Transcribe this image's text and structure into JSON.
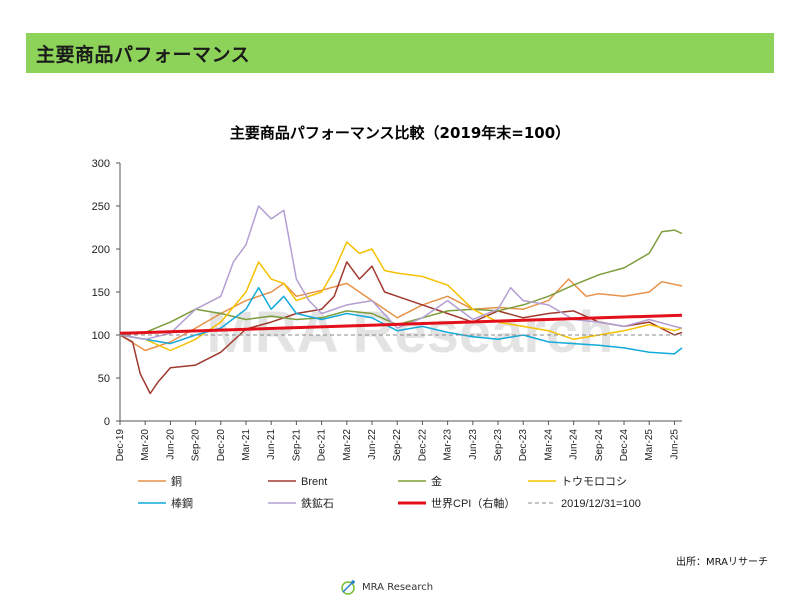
{
  "banner": {
    "title": "主要商品パフォーマンス"
  },
  "chart_data": {
    "type": "line",
    "title": "主要商品パフォーマンス比較（2019年末=100）",
    "ylim": [
      0,
      300
    ],
    "yticks": [
      0,
      50,
      100,
      150,
      200,
      250,
      300
    ],
    "x_tick_labels": [
      "Dec-19",
      "Mar-20",
      "Jun-20",
      "Sep-20",
      "Dec-20",
      "Mar-21",
      "Jun-21",
      "Sep-21",
      "Dec-21",
      "Mar-22",
      "Jun-22",
      "Sep-22",
      "Dec-22",
      "Mar-23",
      "Jun-23",
      "Sep-23",
      "Dec-23",
      "Mar-24",
      "Jun-24",
      "Sep-24",
      "Dec-24",
      "Mar-25",
      "Jun-25"
    ],
    "x_range": [
      0,
      22.3
    ],
    "grid": false,
    "legend_position": "bottom",
    "watermark": "MRA Research",
    "series": [
      {
        "name": "銅",
        "color": "#e8924a",
        "width": 1.5,
        "points": [
          [
            0,
            100
          ],
          [
            1,
            82
          ],
          [
            2,
            92
          ],
          [
            3,
            108
          ],
          [
            4,
            125
          ],
          [
            5,
            140
          ],
          [
            6,
            150
          ],
          [
            6.5,
            160
          ],
          [
            7,
            145
          ],
          [
            8,
            152
          ],
          [
            9,
            160
          ],
          [
            10,
            140
          ],
          [
            11,
            120
          ],
          [
            12,
            135
          ],
          [
            13,
            145
          ],
          [
            14,
            130
          ],
          [
            15,
            132
          ],
          [
            16,
            130
          ],
          [
            17,
            140
          ],
          [
            17.8,
            165
          ],
          [
            18.5,
            145
          ],
          [
            19,
            148
          ],
          [
            20,
            145
          ],
          [
            21,
            150
          ],
          [
            21.5,
            162
          ],
          [
            22.3,
            157
          ]
        ]
      },
      {
        "name": "Brent",
        "color": "#a03a2e",
        "width": 1.5,
        "points": [
          [
            0,
            100
          ],
          [
            0.5,
            92
          ],
          [
            0.8,
            55
          ],
          [
            1.2,
            32
          ],
          [
            1.5,
            45
          ],
          [
            2,
            62
          ],
          [
            3,
            65
          ],
          [
            4,
            80
          ],
          [
            5,
            107
          ],
          [
            6,
            115
          ],
          [
            7,
            125
          ],
          [
            8,
            130
          ],
          [
            8.5,
            145
          ],
          [
            9,
            185
          ],
          [
            9.5,
            165
          ],
          [
            10,
            180
          ],
          [
            10.5,
            150
          ],
          [
            11,
            145
          ],
          [
            12,
            135
          ],
          [
            13,
            125
          ],
          [
            14,
            115
          ],
          [
            15,
            128
          ],
          [
            16,
            120
          ],
          [
            17,
            125
          ],
          [
            18,
            128
          ],
          [
            19,
            115
          ],
          [
            20,
            110
          ],
          [
            21,
            115
          ],
          [
            22,
            100
          ],
          [
            22.3,
            103
          ]
        ]
      },
      {
        "name": "金",
        "color": "#7d9d3c",
        "width": 1.5,
        "points": [
          [
            0,
            100
          ],
          [
            1,
            103
          ],
          [
            2,
            115
          ],
          [
            3,
            130
          ],
          [
            4,
            125
          ],
          [
            5,
            118
          ],
          [
            6,
            122
          ],
          [
            7,
            118
          ],
          [
            8,
            120
          ],
          [
            9,
            128
          ],
          [
            10,
            125
          ],
          [
            11,
            112
          ],
          [
            12,
            120
          ],
          [
            13,
            128
          ],
          [
            14,
            130
          ],
          [
            15,
            128
          ],
          [
            16,
            135
          ],
          [
            17,
            145
          ],
          [
            18,
            158
          ],
          [
            19,
            170
          ],
          [
            20,
            178
          ],
          [
            21,
            195
          ],
          [
            21.5,
            220
          ],
          [
            22,
            222
          ],
          [
            22.3,
            218
          ]
        ]
      },
      {
        "name": "トウモロコシ",
        "color": "#f5c100",
        "width": 1.5,
        "points": [
          [
            0,
            100
          ],
          [
            1,
            95
          ],
          [
            2,
            82
          ],
          [
            3,
            95
          ],
          [
            4,
            115
          ],
          [
            5,
            150
          ],
          [
            5.5,
            185
          ],
          [
            6,
            165
          ],
          [
            6.5,
            160
          ],
          [
            7,
            140
          ],
          [
            8,
            150
          ],
          [
            8.5,
            175
          ],
          [
            9,
            208
          ],
          [
            9.5,
            195
          ],
          [
            10,
            200
          ],
          [
            10.5,
            175
          ],
          [
            11,
            172
          ],
          [
            12,
            168
          ],
          [
            13,
            158
          ],
          [
            14,
            130
          ],
          [
            15,
            115
          ],
          [
            16,
            110
          ],
          [
            17,
            105
          ],
          [
            18,
            95
          ],
          [
            19,
            100
          ],
          [
            20,
            105
          ],
          [
            21,
            112
          ],
          [
            22,
            105
          ],
          [
            22.3,
            108
          ]
        ]
      },
      {
        "name": "棒鋼",
        "color": "#13aadc",
        "width": 1.5,
        "points": [
          [
            0,
            100
          ],
          [
            1,
            95
          ],
          [
            2,
            90
          ],
          [
            3,
            100
          ],
          [
            4,
            108
          ],
          [
            5,
            130
          ],
          [
            5.5,
            155
          ],
          [
            6,
            130
          ],
          [
            6.5,
            145
          ],
          [
            7,
            125
          ],
          [
            8,
            118
          ],
          [
            9,
            125
          ],
          [
            10,
            120
          ],
          [
            11,
            105
          ],
          [
            12,
            110
          ],
          [
            13,
            103
          ],
          [
            14,
            98
          ],
          [
            15,
            95
          ],
          [
            16,
            100
          ],
          [
            17,
            92
          ],
          [
            18,
            90
          ],
          [
            19,
            88
          ],
          [
            20,
            85
          ],
          [
            21,
            80
          ],
          [
            22,
            78
          ],
          [
            22.3,
            85
          ]
        ]
      },
      {
        "name": "鉄鉱石",
        "color": "#b39fd2",
        "width": 1.5,
        "points": [
          [
            0,
            100
          ],
          [
            1,
            95
          ],
          [
            2,
            102
          ],
          [
            3,
            130
          ],
          [
            4,
            145
          ],
          [
            4.5,
            185
          ],
          [
            5,
            205
          ],
          [
            5.5,
            250
          ],
          [
            6,
            235
          ],
          [
            6.5,
            245
          ],
          [
            7,
            165
          ],
          [
            7.5,
            140
          ],
          [
            8,
            125
          ],
          [
            9,
            135
          ],
          [
            10,
            140
          ],
          [
            11,
            108
          ],
          [
            12,
            120
          ],
          [
            13,
            140
          ],
          [
            14,
            118
          ],
          [
            15,
            130
          ],
          [
            15.5,
            155
          ],
          [
            16,
            140
          ],
          [
            17,
            135
          ],
          [
            18,
            118
          ],
          [
            19,
            115
          ],
          [
            20,
            110
          ],
          [
            21,
            118
          ],
          [
            22,
            110
          ],
          [
            22.3,
            108
          ]
        ]
      },
      {
        "name": "世界CPI（右軸）",
        "color": "#e3101b",
        "width": 3,
        "points": [
          [
            0,
            102
          ],
          [
            22.3,
            123
          ]
        ]
      },
      {
        "name": "2019/12/31=100",
        "color": "#888888",
        "width": 1,
        "dash": "4,3",
        "points": [
          [
            0,
            100
          ],
          [
            22.3,
            100
          ]
        ]
      }
    ]
  },
  "source_text": "出所：MRAリサーチ",
  "footer": {
    "brand": "MRA Research"
  }
}
